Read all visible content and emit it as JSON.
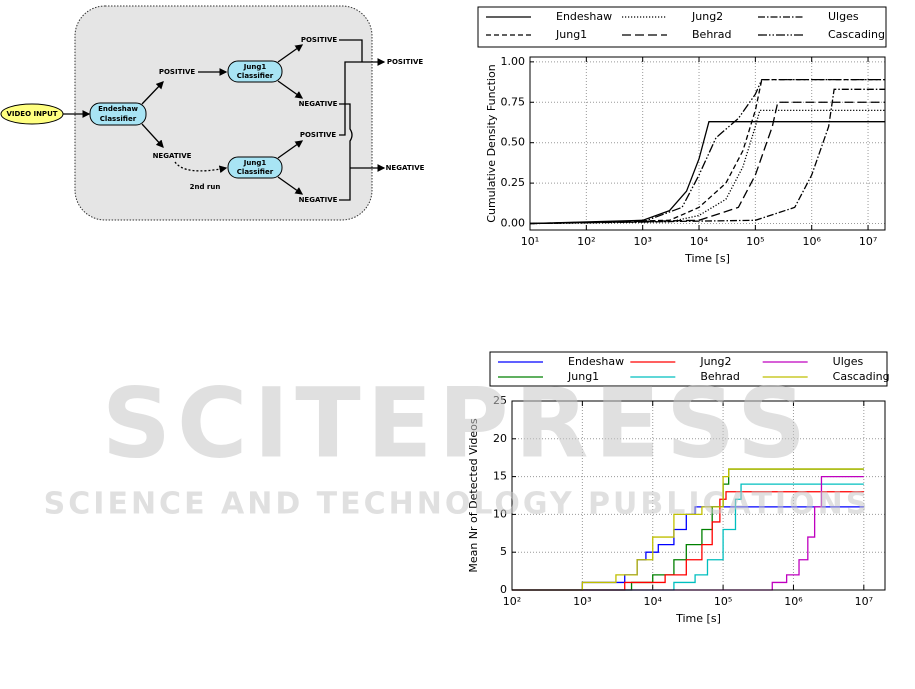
{
  "diagram": {
    "nodes": [
      "VIDEO INPUT",
      [
        "Endeshaw",
        "Classifier"
      ],
      [
        "Jung1",
        "Classifier"
      ],
      [
        "Jung1",
        "Classifier"
      ]
    ],
    "labels": [
      "POSITIVE",
      "NEGATIVE",
      "2nd run",
      "POSITIVE",
      "NEGATIVE",
      "POSITIVE",
      "NEGATIVE"
    ],
    "outputs": [
      "POSITIVE",
      "NEGATIVE"
    ]
  },
  "watermark": {
    "title": "SCITEPRESS",
    "subtitle": "SCIENCE AND TECHNOLOGY PUBLICATIONS"
  },
  "chart_data": [
    {
      "type": "line",
      "xlabel": "Time [s]",
      "ylabel": "Cumulative Density Function",
      "xscale": "log",
      "grid": true,
      "legend": "top",
      "xlim": [
        10,
        20000000
      ],
      "ylim": [
        -0.04,
        1.03
      ],
      "xticks": [
        {
          "value": 10,
          "label": "10¹"
        },
        {
          "value": 100,
          "label": "10²"
        },
        {
          "value": 1000,
          "label": "10³"
        },
        {
          "value": 10000,
          "label": "10⁴"
        },
        {
          "value": 100000,
          "label": "10⁵"
        },
        {
          "value": 1000000,
          "label": "10⁶"
        },
        {
          "value": 10000000,
          "label": "10⁷"
        }
      ],
      "yticks": [
        {
          "value": 0,
          "label": "0.00"
        },
        {
          "value": 0.25,
          "label": "0.25"
        },
        {
          "value": 0.5,
          "label": "0.50"
        },
        {
          "value": 0.75,
          "label": "0.75"
        },
        {
          "value": 1,
          "label": "1.00"
        }
      ],
      "series": [
        {
          "name": "Endeshaw",
          "color": "#000000",
          "linestyle": "solid",
          "x": [
            10,
            1000,
            3000,
            6000,
            10000,
            15000,
            20000000
          ],
          "values": [
            0,
            0.02,
            0.08,
            0.2,
            0.4,
            0.63,
            0.63
          ]
        },
        {
          "name": "Jung1",
          "color": "#000000",
          "linestyle": "dashed",
          "x": [
            10,
            3000,
            10000,
            30000,
            60000,
            100000,
            130000,
            20000000
          ],
          "values": [
            0,
            0.02,
            0.1,
            0.25,
            0.45,
            0.7,
            0.89,
            0.89
          ]
        },
        {
          "name": "Jung2",
          "color": "#000000",
          "linestyle": "dotted",
          "x": [
            10,
            3000,
            10000,
            30000,
            60000,
            100000,
            120000,
            20000000
          ],
          "values": [
            0,
            0.01,
            0.05,
            0.15,
            0.35,
            0.6,
            0.7,
            0.7
          ]
        },
        {
          "name": "Behrad",
          "color": "#000000",
          "linestyle": "longdash",
          "x": [
            10,
            10000,
            50000,
            100000,
            200000,
            250000,
            20000000
          ],
          "values": [
            0,
            0.02,
            0.1,
            0.3,
            0.6,
            0.75,
            0.75
          ]
        },
        {
          "name": "Ulges",
          "color": "#000000",
          "linestyle": "dashdot",
          "x": [
            10,
            100000,
            500000,
            1000000,
            2000000,
            2500000,
            20000000
          ],
          "values": [
            0,
            0.02,
            0.1,
            0.3,
            0.6,
            0.83,
            0.83
          ]
        },
        {
          "name": "Cascading",
          "color": "#000000",
          "linestyle": "dashdotdot",
          "x": [
            10,
            1000,
            5000,
            10000,
            20000,
            25000,
            50000,
            100000,
            130000,
            20000000
          ],
          "values": [
            0,
            0.01,
            0.1,
            0.3,
            0.53,
            0.56,
            0.65,
            0.8,
            0.89,
            0.89
          ]
        }
      ]
    },
    {
      "type": "line",
      "xlabel": "Time [s]",
      "ylabel": "Mean Nr of Detected Videos",
      "xscale": "log",
      "grid": true,
      "legend": "top",
      "drawstyle": "steps-post",
      "xlim": [
        100,
        20000000
      ],
      "ylim": [
        0,
        25
      ],
      "xticks": [
        {
          "value": 100,
          "label": "10²"
        },
        {
          "value": 1000,
          "label": "10³"
        },
        {
          "value": 10000,
          "label": "10⁴"
        },
        {
          "value": 100000,
          "label": "10⁵"
        },
        {
          "value": 1000000,
          "label": "10⁶"
        },
        {
          "value": 10000000,
          "label": "10⁷"
        }
      ],
      "yticks": [
        0,
        5,
        10,
        15,
        20,
        25
      ],
      "series": [
        {
          "name": "Endeshaw",
          "color": "#0000ff",
          "linestyle": "solid",
          "x": [
            100,
            1000,
            2000,
            4000,
            6000,
            8000,
            12000,
            20000,
            30000,
            40000,
            10000000
          ],
          "values": [
            0,
            1,
            1,
            2,
            4,
            5,
            6,
            8,
            10,
            11,
            11
          ]
        },
        {
          "name": "Jung1",
          "color": "#008000",
          "linestyle": "solid",
          "x": [
            100,
            5000,
            10000,
            20000,
            30000,
            50000,
            70000,
            100000,
            120000,
            10000000
          ],
          "values": [
            0,
            1,
            2,
            4,
            6,
            8,
            11,
            14,
            16,
            16
          ]
        },
        {
          "name": "Jung2",
          "color": "#ff0000",
          "linestyle": "solid",
          "x": [
            100,
            4000,
            15000,
            30000,
            50000,
            70000,
            90000,
            110000,
            10000000
          ],
          "values": [
            0,
            1,
            2,
            4,
            6,
            9,
            12,
            13,
            13
          ]
        },
        {
          "name": "Behrad",
          "color": "#00bfbf",
          "linestyle": "solid",
          "x": [
            100,
            20000,
            40000,
            60000,
            100000,
            150000,
            180000,
            10000000
          ],
          "values": [
            0,
            1,
            2,
            4,
            8,
            12,
            14,
            14
          ]
        },
        {
          "name": "Ulges",
          "color": "#bf00bf",
          "linestyle": "solid",
          "x": [
            100,
            500000,
            800000,
            1200000,
            1600000,
            2000000,
            2500000,
            10000000
          ],
          "values": [
            0,
            1,
            2,
            4,
            7,
            11,
            15,
            15
          ]
        },
        {
          "name": "Cascading",
          "color": "#bfbf00",
          "linestyle": "solid",
          "x": [
            100,
            1000,
            3000,
            6000,
            10000,
            20000,
            50000,
            100000,
            120000,
            10000000
          ],
          "values": [
            0,
            1,
            2,
            4,
            7,
            10,
            11,
            15,
            16,
            16
          ]
        }
      ]
    }
  ]
}
